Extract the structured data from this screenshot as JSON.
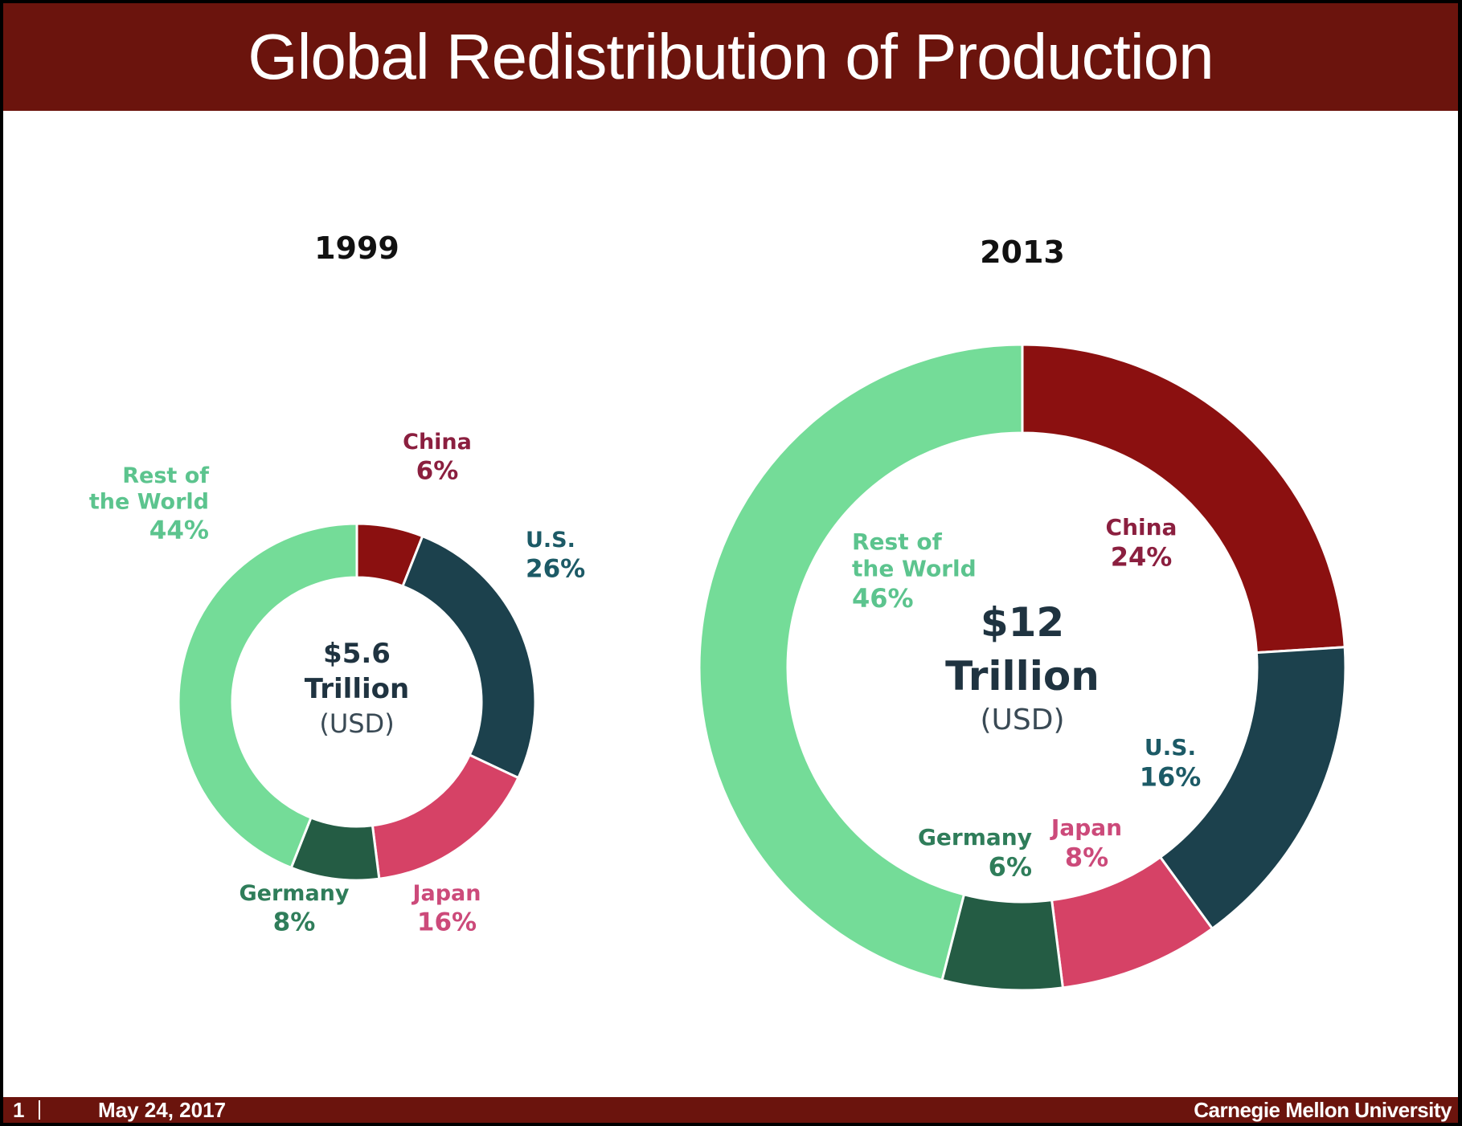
{
  "header": {
    "title": "Global Redistribution of Production"
  },
  "chart_data": [
    {
      "type": "pie",
      "year": "1999",
      "center": {
        "line1": "$5.6",
        "line2": "Trillion",
        "line3": "(USD)"
      },
      "slices": [
        {
          "name": "China",
          "value": 6,
          "label": "6%",
          "color": "#8b1010"
        },
        {
          "name": "U.S.",
          "value": 26,
          "label": "26%",
          "color": "#1c414d"
        },
        {
          "name": "Japan",
          "value": 16,
          "label": "16%",
          "color": "#d64266"
        },
        {
          "name": "Germany",
          "value": 8,
          "label": "8%",
          "color": "#245c44"
        },
        {
          "name": "Rest of the World",
          "value": 44,
          "label": "44%",
          "color": "#74dc98"
        }
      ]
    },
    {
      "type": "pie",
      "year": "2013",
      "center": {
        "line1": "$12",
        "line2": "Trillion",
        "line3": "(USD)"
      },
      "slices": [
        {
          "name": "China",
          "value": 24,
          "label": "24%",
          "color": "#8b1010"
        },
        {
          "name": "U.S.",
          "value": 16,
          "label": "16%",
          "color": "#1c414d"
        },
        {
          "name": "Japan",
          "value": 8,
          "label": "8%",
          "color": "#d64266"
        },
        {
          "name": "Germany",
          "value": 6,
          "label": "6%",
          "color": "#245c44"
        },
        {
          "name": "Rest of the World",
          "value": 46,
          "label": "46%",
          "color": "#74dc98"
        }
      ]
    }
  ],
  "label_colors": {
    "China": "#8b1f3f",
    "U.S.": "#1c5a66",
    "Japan": "#cc4a7a",
    "Germany": "#2f7d5a",
    "Rest of the World": "#5cc48e"
  },
  "footer": {
    "page": "1",
    "date": "May 24, 2017",
    "org": "Carnegie Mellon University"
  }
}
